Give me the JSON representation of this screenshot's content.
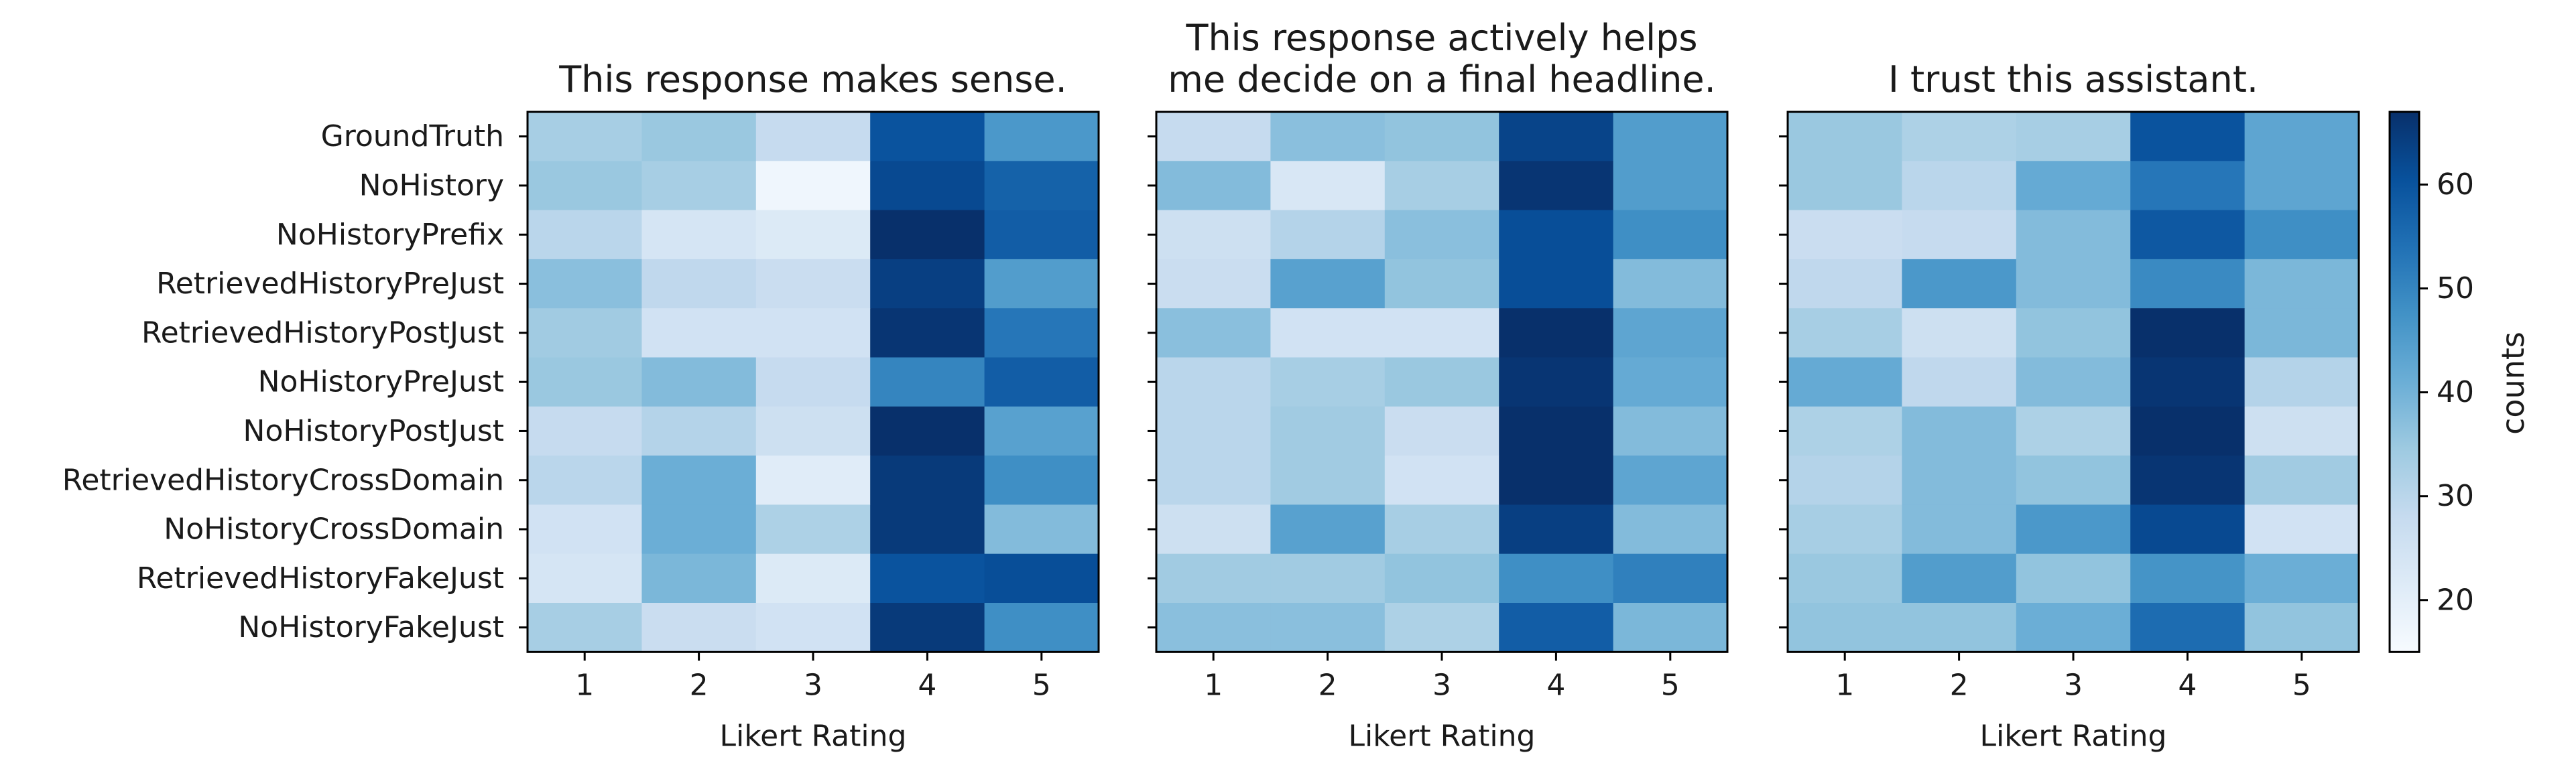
{
  "chart_data": {
    "type": "heatmap",
    "colormap": "Blues",
    "color_range": [
      15,
      67
    ],
    "colorbar": {
      "label": "counts",
      "ticks": [
        20,
        30,
        40,
        50,
        60
      ],
      "tick_labels": [
        "20",
        "30",
        "40",
        "50",
        "60"
      ]
    },
    "rows": [
      "GroundTruth",
      "NoHistory",
      "NoHistoryPrefix",
      "RetrievedHistoryPreJust",
      "RetrievedHistoryPostJust",
      "NoHistoryPreJust",
      "NoHistoryPostJust",
      "RetrievedHistoryCrossDomain",
      "NoHistoryCrossDomain",
      "RetrievedHistoryFakeJust",
      "NoHistoryFakeJust"
    ],
    "columns": [
      "1",
      "2",
      "3",
      "4",
      "5"
    ],
    "xlabel": "Likert Rating",
    "panels": [
      {
        "title_lines": [
          "This response makes sense."
        ],
        "values": [
          [
            33,
            35,
            28,
            60,
            46
          ],
          [
            35,
            33,
            17,
            62,
            57
          ],
          [
            30,
            24,
            22,
            67,
            58
          ],
          [
            37,
            29,
            27,
            64,
            45
          ],
          [
            34,
            25,
            25,
            66,
            53
          ],
          [
            35,
            38,
            28,
            50,
            58
          ],
          [
            28,
            31,
            26,
            67,
            44
          ],
          [
            30,
            41,
            21,
            65,
            48
          ],
          [
            25,
            41,
            32,
            65,
            38
          ],
          [
            24,
            39,
            22,
            60,
            61
          ],
          [
            33,
            27,
            25,
            65,
            48
          ]
        ]
      },
      {
        "title_lines": [
          "This response actively helps",
          "me decide on a final headline."
        ],
        "values": [
          [
            28,
            37,
            36,
            63,
            45
          ],
          [
            38,
            23,
            33,
            66,
            45
          ],
          [
            26,
            31,
            37,
            61,
            48
          ],
          [
            27,
            44,
            36,
            61,
            38
          ],
          [
            37,
            25,
            25,
            67,
            43
          ],
          [
            30,
            33,
            35,
            66,
            42
          ],
          [
            30,
            34,
            27,
            67,
            38
          ],
          [
            30,
            34,
            25,
            67,
            43
          ],
          [
            26,
            44,
            33,
            64,
            38
          ],
          [
            34,
            34,
            36,
            48,
            51
          ],
          [
            37,
            37,
            32,
            58,
            39
          ]
        ]
      },
      {
        "title_lines": [
          "I trust this assistant."
        ],
        "values": [
          [
            35,
            32,
            33,
            60,
            43
          ],
          [
            35,
            30,
            42,
            53,
            43
          ],
          [
            27,
            28,
            38,
            59,
            48
          ],
          [
            29,
            46,
            38,
            49,
            39
          ],
          [
            33,
            26,
            36,
            67,
            39
          ],
          [
            42,
            29,
            38,
            66,
            31
          ],
          [
            32,
            38,
            32,
            67,
            26
          ],
          [
            31,
            38,
            36,
            66,
            34
          ],
          [
            33,
            38,
            46,
            62,
            25
          ],
          [
            35,
            45,
            36,
            47,
            41
          ],
          [
            36,
            36,
            41,
            55,
            36
          ]
        ]
      }
    ]
  }
}
